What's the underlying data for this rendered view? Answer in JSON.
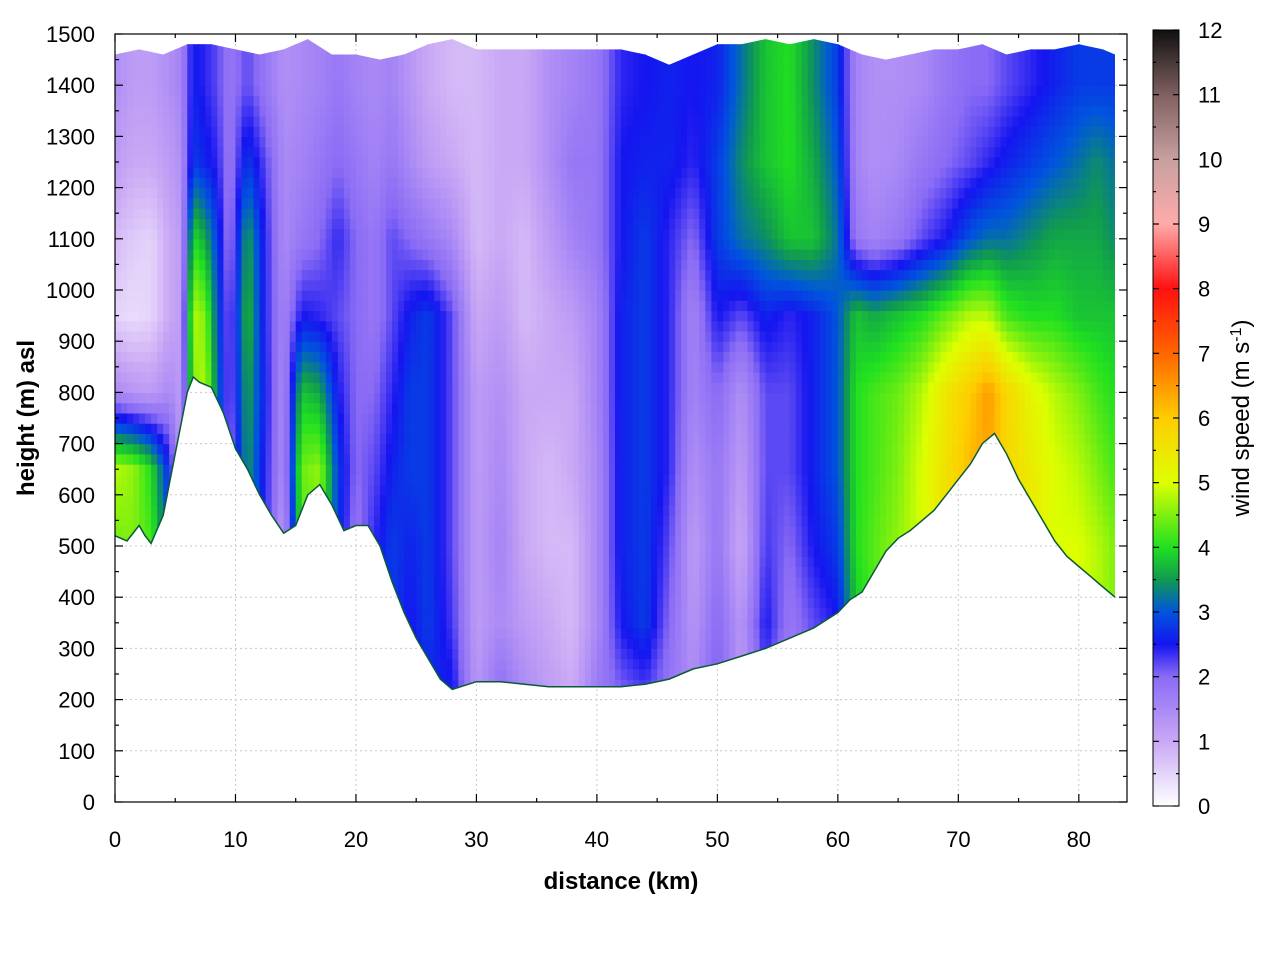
{
  "chart_data": {
    "type": "heatmap",
    "title": "",
    "xlabel": "distance (km)",
    "ylabel": "height (m) asl",
    "xlim": [
      0,
      84
    ],
    "ylim": [
      0,
      1500
    ],
    "x_ticks": [
      "0",
      "10",
      "20",
      "30",
      "40",
      "50",
      "60",
      "70",
      "80"
    ],
    "y_ticks": [
      "0",
      "100",
      "200",
      "300",
      "400",
      "500",
      "600",
      "700",
      "800",
      "900",
      "1000",
      "1100",
      "1200",
      "1300",
      "1400",
      "1500"
    ],
    "grid": true,
    "colorbar": {
      "label_main": "wind speed (m s",
      "label_sup": "-1",
      "label_end": ")",
      "range": [
        0,
        12
      ],
      "ticks": [
        "0",
        "1",
        "2",
        "3",
        "4",
        "5",
        "6",
        "7",
        "8",
        "9",
        "10",
        "11",
        "12"
      ],
      "stops": [
        {
          "v": 0.0,
          "c": "#ffffff"
        },
        {
          "v": 1.0,
          "c": "#c9a8f5"
        },
        {
          "v": 2.0,
          "c": "#8a6bf5"
        },
        {
          "v": 2.5,
          "c": "#1515f0"
        },
        {
          "v": 3.0,
          "c": "#0055dd"
        },
        {
          "v": 3.5,
          "c": "#109a50"
        },
        {
          "v": 4.0,
          "c": "#20e020"
        },
        {
          "v": 5.0,
          "c": "#ddff00"
        },
        {
          "v": 6.0,
          "c": "#ffcc00"
        },
        {
          "v": 7.0,
          "c": "#ff6600"
        },
        {
          "v": 8.0,
          "c": "#ff1010"
        },
        {
          "v": 9.0,
          "c": "#ffaaaa"
        },
        {
          "v": 10.0,
          "c": "#c8a0a0"
        },
        {
          "v": 11.0,
          "c": "#806060"
        },
        {
          "v": 12.0,
          "c": "#101010"
        }
      ]
    },
    "terrain": {
      "x_km": [
        0,
        1,
        2,
        2.5,
        3,
        4,
        5,
        6,
        6.5,
        7,
        8,
        9,
        10,
        11,
        12,
        13,
        14,
        15,
        16,
        17,
        18,
        19,
        20,
        21,
        22,
        23,
        24,
        25,
        26,
        27,
        28,
        30,
        32,
        34,
        36,
        38,
        40,
        42,
        44,
        46,
        48,
        50,
        52,
        54,
        56,
        58,
        60,
        61,
        62,
        63,
        64,
        65,
        66,
        67,
        68,
        69,
        70,
        71,
        72,
        73,
        74,
        75,
        76,
        77,
        78,
        79,
        80,
        81,
        82,
        83
      ],
      "height_m": [
        520,
        510,
        540,
        520,
        505,
        560,
        680,
        800,
        830,
        820,
        810,
        760,
        690,
        650,
        600,
        560,
        525,
        540,
        600,
        620,
        580,
        530,
        540,
        540,
        500,
        430,
        370,
        320,
        280,
        240,
        220,
        235,
        235,
        230,
        225,
        225,
        225,
        225,
        230,
        240,
        260,
        270,
        285,
        300,
        320,
        340,
        370,
        395,
        410,
        450,
        490,
        515,
        530,
        550,
        570,
        600,
        630,
        660,
        700,
        720,
        680,
        630,
        590,
        550,
        510,
        480,
        460,
        440,
        420,
        400
      ]
    },
    "top_boundary": {
      "x_km": [
        0,
        2,
        4,
        6,
        8,
        10,
        12,
        14,
        16,
        18,
        20,
        22,
        24,
        26,
        28,
        30,
        32,
        34,
        36,
        38,
        40,
        42,
        44,
        46,
        48,
        50,
        52,
        54,
        56,
        58,
        60,
        62,
        64,
        66,
        68,
        70,
        72,
        74,
        76,
        78,
        80,
        82,
        83
      ],
      "height_m": [
        1460,
        1470,
        1460,
        1480,
        1480,
        1470,
        1460,
        1470,
        1490,
        1460,
        1460,
        1450,
        1460,
        1480,
        1490,
        1470,
        1470,
        1470,
        1470,
        1470,
        1470,
        1470,
        1460,
        1440,
        1460,
        1480,
        1480,
        1490,
        1480,
        1490,
        1480,
        1460,
        1450,
        1460,
        1470,
        1470,
        1480,
        1460,
        1470,
        1470,
        1480,
        1470,
        1460
      ]
    },
    "wind_field": {
      "x_km": [
        0,
        1.5,
        3,
        4.5,
        5.5,
        6.5,
        7.5,
        8.5,
        9.5,
        11,
        12.5,
        14,
        15.5,
        17,
        18.5,
        20,
        21.5,
        23,
        24.5,
        26,
        28,
        30,
        32,
        34,
        36,
        38,
        40,
        42,
        44,
        46,
        48,
        50,
        52,
        54,
        56,
        58,
        60,
        61.5,
        63,
        65,
        67,
        69,
        71,
        72.5,
        74,
        76,
        78,
        80,
        81.5,
        83
      ],
      "height_m": [
        200,
        350,
        500,
        650,
        800,
        950,
        1100,
        1250,
        1400,
        1500
      ],
      "speed_ms": [
        [
          4.0,
          4.2,
          3.8,
          3.5,
          1.2,
          4.0,
          4.2,
          3.0,
          1.5,
          3.5,
          2.6,
          1.0,
          3.8,
          4.2,
          2.8,
          1.6,
          2.6,
          2.5,
          2.3,
          2.6,
          2.6,
          1.3,
          2.0,
          1.5,
          1.2,
          1.0,
          1.8,
          2.0,
          2.2,
          1.8,
          1.5,
          2.2,
          1.2,
          2.2,
          1.5,
          2.0,
          2.3,
          3.6,
          4.0,
          4.5,
          5.0,
          5.2,
          5.4,
          5.5,
          5.2,
          5.0,
          5.0,
          5.0,
          4.6,
          4.2
        ],
        [
          4.2,
          4.5,
          4.0,
          3.2,
          1.2,
          4.0,
          4.2,
          3.0,
          1.5,
          3.8,
          2.5,
          1.2,
          4.0,
          4.0,
          2.8,
          1.6,
          2.5,
          2.8,
          2.5,
          2.8,
          2.3,
          1.2,
          1.5,
          1.2,
          1.0,
          0.8,
          1.5,
          2.5,
          2.8,
          2.0,
          1.3,
          2.0,
          1.3,
          2.5,
          1.8,
          2.2,
          2.5,
          3.8,
          4.2,
          4.6,
          5.0,
          5.5,
          5.8,
          6.0,
          5.6,
          5.2,
          5.0,
          5.0,
          4.8,
          4.5
        ],
        [
          4.4,
          4.5,
          4.2,
          3.0,
          1.2,
          4.2,
          4.4,
          3.2,
          1.6,
          3.8,
          2.4,
          1.2,
          4.2,
          4.5,
          2.8,
          1.8,
          2.4,
          2.8,
          2.6,
          2.8,
          2.2,
          1.2,
          1.6,
          1.0,
          0.8,
          0.8,
          1.5,
          2.6,
          2.8,
          2.2,
          1.2,
          1.8,
          1.0,
          2.3,
          2.0,
          2.5,
          2.8,
          4.0,
          4.3,
          4.6,
          5.0,
          5.6,
          6.0,
          6.2,
          5.8,
          5.4,
          5.0,
          5.0,
          4.8,
          4.5
        ],
        [
          4.8,
          4.6,
          4.0,
          2.6,
          1.2,
          4.2,
          4.6,
          3.2,
          1.8,
          3.5,
          2.4,
          1.5,
          4.4,
          4.6,
          2.8,
          2.0,
          2.2,
          2.6,
          2.8,
          2.8,
          2.2,
          1.2,
          1.5,
          1.0,
          0.8,
          1.0,
          1.5,
          2.6,
          2.8,
          2.4,
          1.4,
          1.8,
          1.2,
          2.2,
          2.2,
          2.6,
          3.0,
          4.0,
          4.2,
          4.5,
          5.0,
          5.6,
          6.2,
          6.4,
          5.8,
          5.4,
          5.0,
          4.8,
          4.5,
          4.2
        ],
        [
          1.5,
          1.3,
          1.2,
          1.5,
          1.2,
          4.5,
          4.8,
          3.2,
          2.0,
          3.6,
          2.5,
          1.5,
          3.8,
          3.6,
          2.5,
          2.0,
          2.0,
          2.4,
          2.8,
          2.8,
          2.2,
          1.2,
          1.4,
          1.0,
          1.0,
          1.0,
          1.6,
          2.6,
          2.8,
          2.4,
          1.6,
          2.0,
          1.4,
          2.2,
          2.2,
          2.6,
          3.0,
          4.0,
          4.2,
          4.4,
          4.8,
          5.5,
          6.0,
          6.5,
          5.8,
          5.2,
          4.8,
          4.5,
          4.2,
          4.0
        ],
        [
          0.5,
          0.4,
          0.5,
          1.0,
          1.2,
          4.8,
          4.5,
          3.0,
          2.0,
          3.8,
          2.4,
          1.6,
          2.5,
          2.4,
          2.2,
          2.0,
          1.8,
          2.2,
          2.6,
          2.8,
          2.2,
          1.0,
          1.2,
          0.8,
          1.0,
          1.2,
          1.6,
          2.6,
          2.8,
          2.4,
          1.6,
          2.5,
          2.2,
          2.6,
          2.4,
          2.6,
          3.0,
          3.8,
          3.6,
          3.8,
          4.0,
          4.4,
          4.8,
          4.8,
          4.2,
          4.0,
          4.0,
          3.8,
          3.8,
          3.8
        ],
        [
          0.8,
          0.6,
          0.5,
          1.0,
          1.2,
          4.0,
          3.6,
          2.8,
          1.8,
          3.6,
          2.4,
          1.5,
          1.8,
          2.0,
          2.4,
          2.0,
          1.8,
          2.2,
          2.0,
          1.8,
          1.5,
          0.8,
          1.0,
          0.8,
          1.2,
          1.6,
          1.8,
          2.5,
          2.8,
          2.4,
          2.0,
          2.8,
          3.2,
          3.4,
          3.8,
          3.8,
          3.2,
          1.8,
          1.6,
          1.8,
          2.2,
          2.5,
          3.0,
          3.2,
          3.2,
          3.4,
          3.6,
          3.6,
          3.6,
          3.4
        ],
        [
          1.2,
          1.0,
          1.0,
          1.2,
          1.4,
          2.8,
          2.6,
          2.4,
          1.8,
          2.8,
          2.2,
          1.5,
          1.6,
          1.8,
          2.0,
          1.8,
          1.6,
          1.8,
          1.5,
          1.2,
          1.0,
          0.8,
          1.0,
          1.0,
          1.4,
          1.8,
          1.8,
          2.5,
          2.6,
          2.6,
          2.4,
          2.8,
          3.4,
          3.8,
          4.0,
          3.6,
          3.0,
          1.6,
          1.4,
          1.5,
          1.8,
          2.0,
          2.2,
          2.4,
          2.6,
          2.8,
          3.0,
          3.2,
          3.4,
          3.2
        ],
        [
          1.4,
          1.2,
          1.2,
          1.4,
          1.6,
          2.6,
          2.4,
          2.2,
          1.8,
          2.2,
          1.8,
          1.4,
          1.5,
          1.6,
          1.8,
          1.6,
          1.5,
          1.6,
          1.3,
          1.0,
          0.8,
          0.8,
          1.0,
          1.0,
          1.4,
          1.6,
          1.8,
          2.4,
          2.5,
          2.6,
          2.5,
          2.6,
          3.2,
          3.8,
          4.0,
          3.4,
          2.8,
          1.6,
          1.4,
          1.4,
          1.5,
          1.8,
          2.0,
          2.0,
          2.2,
          2.4,
          2.6,
          2.8,
          2.8,
          2.8
        ],
        [
          1.4,
          1.2,
          1.2,
          1.4,
          1.6,
          2.6,
          2.4,
          2.2,
          1.8,
          2.2,
          1.8,
          1.4,
          1.5,
          1.6,
          1.8,
          1.6,
          1.5,
          1.6,
          1.3,
          1.0,
          0.8,
          0.8,
          1.0,
          1.0,
          1.4,
          1.6,
          1.8,
          2.4,
          2.5,
          2.6,
          2.5,
          2.6,
          3.2,
          3.8,
          4.0,
          3.4,
          2.8,
          1.6,
          1.4,
          1.4,
          1.5,
          1.8,
          2.0,
          2.0,
          2.2,
          2.4,
          2.6,
          2.8,
          2.8,
          2.8
        ]
      ]
    }
  }
}
